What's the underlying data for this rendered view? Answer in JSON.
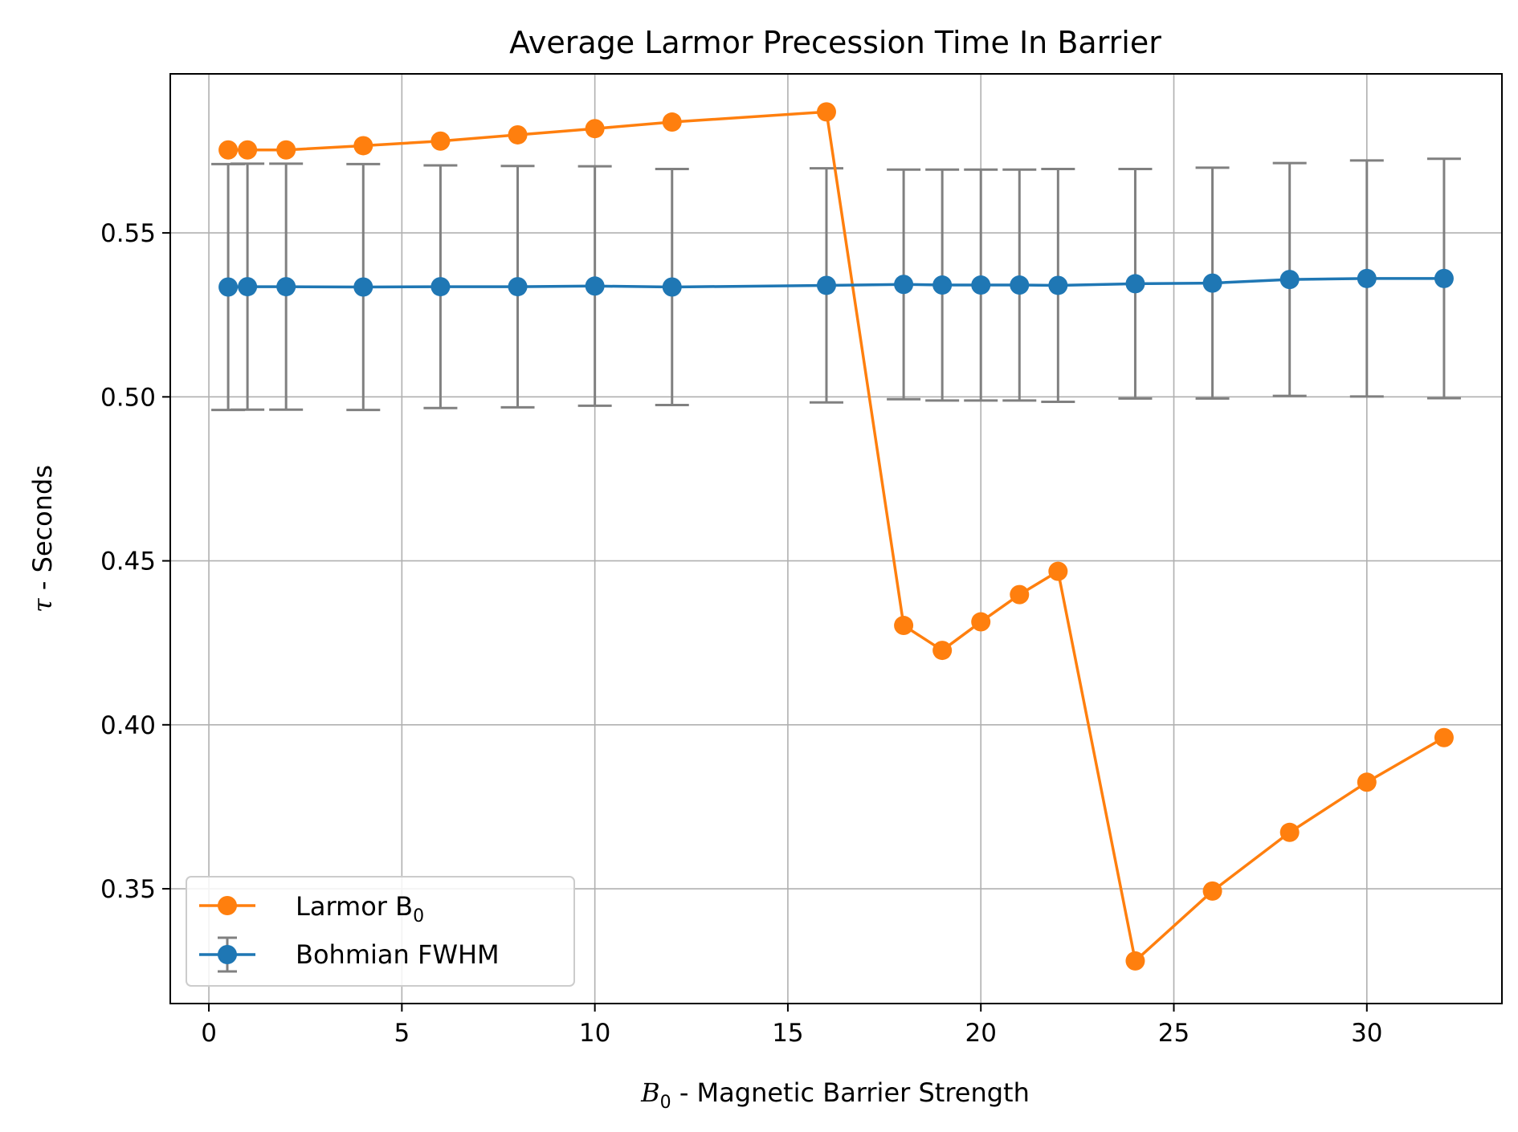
{
  "chart_data": {
    "type": "line",
    "title": "Average Larmor Precession Time In Barrier",
    "xlabel": {
      "symbol": "B",
      "sub": "0",
      "text": " - Magnetic Barrier Strength"
    },
    "ylabel": {
      "symbol": "τ",
      "text": " - Seconds"
    },
    "xlim": [
      -1,
      33.5
    ],
    "ylim": [
      0.315,
      0.5985
    ],
    "xticks": [
      0,
      5,
      10,
      15,
      20,
      25,
      30
    ],
    "xtick_labels": [
      "0",
      "5",
      "10",
      "15",
      "20",
      "25",
      "30"
    ],
    "yticks": [
      0.35,
      0.4,
      0.45,
      0.5,
      0.55
    ],
    "ytick_labels": [
      "0.35",
      "0.40",
      "0.45",
      "0.50",
      "0.55"
    ],
    "grid": true,
    "legend_position": "lower-left",
    "series": [
      {
        "name": "Larmor B0",
        "legend_symbol": "Larmor B",
        "legend_sub": "0",
        "color": "#ff7f0e",
        "marker": "circle",
        "x": [
          0.5,
          1,
          2,
          4,
          6,
          8,
          10,
          12,
          16,
          18,
          19,
          20,
          21,
          22,
          24,
          26,
          28,
          30,
          32
        ],
        "y": [
          0.5753,
          0.5753,
          0.5753,
          0.5766,
          0.578,
          0.5799,
          0.5818,
          0.5838,
          0.5869,
          0.4303,
          0.4227,
          0.4314,
          0.4397,
          0.4468,
          0.328,
          0.3493,
          0.3672,
          0.3825,
          0.3961
        ]
      },
      {
        "name": "Bohmian FWHM",
        "legend_symbol": "Bohmian FWHM",
        "color": "#1f77b4",
        "errorbar_color": "#808080",
        "marker": "circle",
        "x": [
          0.5,
          1,
          2,
          4,
          6,
          8,
          10,
          12,
          16,
          18,
          19,
          20,
          21,
          22,
          24,
          26,
          28,
          30,
          32
        ],
        "y": [
          0.5335,
          0.5336,
          0.5336,
          0.5335,
          0.5336,
          0.5336,
          0.5338,
          0.5335,
          0.534,
          0.5343,
          0.5341,
          0.5341,
          0.5341,
          0.534,
          0.5345,
          0.5347,
          0.5358,
          0.5361,
          0.5361
        ],
        "err": [
          0.0375,
          0.0375,
          0.0375,
          0.0375,
          0.037,
          0.0368,
          0.0365,
          0.036,
          0.0357,
          0.035,
          0.0352,
          0.0352,
          0.0352,
          0.0355,
          0.035,
          0.0352,
          0.0355,
          0.036,
          0.0365
        ]
      }
    ]
  }
}
